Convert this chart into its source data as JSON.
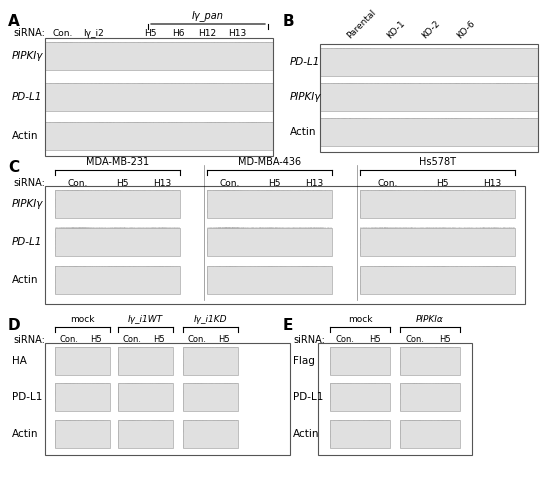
{
  "panel_A": {
    "label": "A",
    "title_text": "Iγ_pan",
    "sirna_label": "siRNA:",
    "cols": [
      "Con.",
      "Iγ_i2",
      "H5",
      "H6",
      "H12",
      "H13"
    ],
    "rows": [
      "PIPKIγ",
      "PD-L1",
      "Actin"
    ],
    "bracket_cols": [
      2,
      5
    ],
    "bracket_label": "Iγ_pan",
    "row_colors": {
      "PIPKIγ": [
        [
          [
            0.15,
            0.15,
            0.15
          ],
          [
            0.35,
            0.35,
            0.35
          ]
        ],
        [
          [
            0.55,
            0.55,
            0.55
          ],
          [
            0.65,
            0.65,
            0.65
          ]
        ],
        [
          [
            0.72,
            0.72,
            0.72
          ],
          [
            0.75,
            0.75,
            0.75
          ]
        ],
        [
          [
            0.72,
            0.72,
            0.72
          ],
          [
            0.75,
            0.75,
            0.75
          ]
        ],
        [
          [
            0.72,
            0.72,
            0.72
          ],
          [
            0.75,
            0.75,
            0.75
          ]
        ],
        [
          [
            0.72,
            0.72,
            0.72
          ],
          [
            0.75,
            0.75,
            0.75
          ]
        ]
      ],
      "PD-L1": [
        [
          [
            0.2,
            0.2,
            0.2
          ],
          [
            0.3,
            0.3,
            0.3
          ]
        ],
        [
          [
            0.4,
            0.4,
            0.4
          ],
          [
            0.5,
            0.5,
            0.5
          ]
        ],
        [
          [
            0.55,
            0.55,
            0.55
          ],
          [
            0.6,
            0.6,
            0.6
          ]
        ],
        [
          [
            0.6,
            0.6,
            0.6
          ],
          [
            0.65,
            0.65,
            0.65
          ]
        ],
        [
          [
            0.55,
            0.55,
            0.55
          ],
          [
            0.65,
            0.65,
            0.65
          ]
        ],
        [
          [
            0.62,
            0.62,
            0.62
          ],
          [
            0.68,
            0.68,
            0.68
          ]
        ]
      ],
      "Actin": [
        [
          [
            0.25,
            0.25,
            0.25
          ],
          [
            0.3,
            0.3,
            0.3
          ]
        ],
        [
          [
            0.25,
            0.25,
            0.25
          ],
          [
            0.3,
            0.3,
            0.3
          ]
        ],
        [
          [
            0.25,
            0.25,
            0.25
          ],
          [
            0.3,
            0.3,
            0.3
          ]
        ],
        [
          [
            0.25,
            0.25,
            0.25
          ],
          [
            0.3,
            0.3,
            0.3
          ]
        ],
        [
          [
            0.25,
            0.25,
            0.25
          ],
          [
            0.3,
            0.3,
            0.3
          ]
        ],
        [
          [
            0.3,
            0.3,
            0.3
          ],
          [
            0.35,
            0.35,
            0.35
          ]
        ]
      ]
    }
  },
  "panel_B": {
    "label": "B",
    "cols": [
      "Parental",
      "KO-1",
      "KO-2",
      "KO-6"
    ],
    "rows": [
      "PD-L1",
      "PIPKIγ",
      "Actin"
    ]
  },
  "panel_C": {
    "label": "C",
    "cell_lines": [
      "MDA-MB-231",
      "MD-MBA-436",
      "Hs578T"
    ],
    "sirna_cols": [
      "Con.",
      "H5",
      "H13"
    ],
    "rows": [
      "PIPKIγ",
      "PD-L1",
      "Actin"
    ]
  },
  "panel_D": {
    "label": "D",
    "groups": [
      "mock",
      "Iγ_i1WT",
      "Iγ_i1KD"
    ],
    "sirna_cols": [
      "Con.",
      "H5"
    ],
    "rows": [
      "HA",
      "PD-L1",
      "Actin"
    ]
  },
  "panel_E": {
    "label": "E",
    "groups": [
      "mock",
      "PIPKIα"
    ],
    "sirna_cols": [
      "Con.",
      "H5"
    ],
    "rows": [
      "Flag",
      "PD-L1",
      "Actin"
    ]
  },
  "bg_color": "#f0f0f0",
  "band_bg": "#d8d8d8",
  "dark_band": "#1a1a1a",
  "medium_band": "#555555",
  "light_band": "#909090",
  "border_color": "#888888"
}
